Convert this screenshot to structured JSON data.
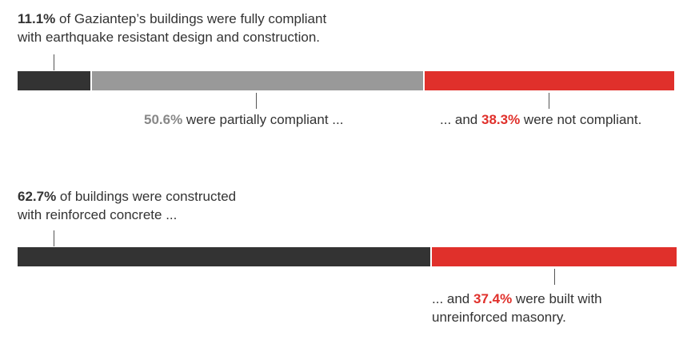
{
  "colors": {
    "dark": "#333333",
    "gray": "#999999",
    "red": "#e0302b",
    "text": "#333333"
  },
  "chart_data": [
    {
      "type": "bar",
      "stacked": true,
      "orientation": "horizontal",
      "series": [
        {
          "name": "fully compliant",
          "value": 11.1,
          "color": "#333333"
        },
        {
          "name": "partially compliant",
          "value": 50.6,
          "color": "#999999"
        },
        {
          "name": "not compliant",
          "value": 38.3,
          "color": "#e0302b"
        }
      ],
      "annotations": {
        "a1_value": "11.1%",
        "a1_line1": " of Gaziantep’s buildings were fully compliant",
        "a1_line2": "with earthquake resistant design and construction.",
        "a2_value": "50.6%",
        "a2_text": " were partially compliant ...",
        "a3_pre": "... and ",
        "a3_value": "38.3%",
        "a3_text": " were not compliant."
      }
    },
    {
      "type": "bar",
      "stacked": true,
      "orientation": "horizontal",
      "series": [
        {
          "name": "reinforced concrete",
          "value": 62.7,
          "color": "#333333"
        },
        {
          "name": "unreinforced masonry",
          "value": 37.4,
          "color": "#e0302b"
        }
      ],
      "annotations": {
        "b1_value": "62.7%",
        "b1_line1": " of buildings were constructed",
        "b1_line2": "with reinforced concrete ...",
        "b2_pre": "... and ",
        "b2_value": "37.4%",
        "b2_line1": " were built with",
        "b2_line2": "unreinforced masonry."
      }
    }
  ]
}
